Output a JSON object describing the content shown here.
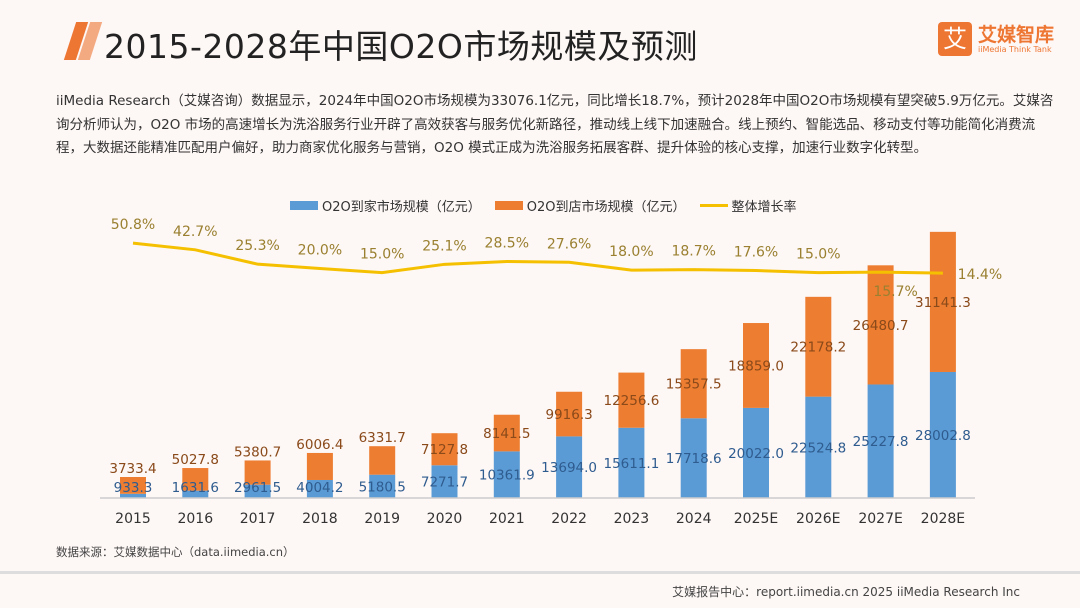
{
  "header": {
    "title": "2015-2028年中国O2O市场规模及预测",
    "logo_text": "艾媒智库",
    "logo_sub": "iiMedia Think Tank",
    "logo_mark": "艾"
  },
  "paragraph": "iiMedia Research（艾媒咨询）数据显示，2024年中国O2O市场规模为33076.1亿元，同比增长18.7%，预计2028年中国O2O市场规模有望突破5.9万亿元。艾媒咨询分析师认为，O2O 市场的高速增长为洗浴服务行业开辟了高效获客与服务优化新路径，推动线上线下加速融合。线上预约、智能选品、移动支付等功能简化消费流程，大数据还能精准匹配用户偏好，助力商家优化服务与营销，O2O 模式正成为洗浴服务拓展客群、提升体验的核心支撑，加速行业数字化转型。",
  "source": "数据来源：艾媒数据中心（data.iimedia.cn）",
  "footer": "艾媒报告中心：report.iimedia.cn   2025 iiMedia Research Inc",
  "chart_data": {
    "type": "bar",
    "stacked": true,
    "categories": [
      "2015",
      "2016",
      "2017",
      "2018",
      "2019",
      "2020",
      "2021",
      "2022",
      "2023",
      "2024",
      "2025E",
      "2026E",
      "2027E",
      "2028E"
    ],
    "series": [
      {
        "name": "O2O到家市场规模（亿元）",
        "type": "bar",
        "color": "#5b9bd5",
        "values": [
          933.3,
          1631.6,
          2961.5,
          4004.2,
          5180.5,
          7271.7,
          10361.9,
          13694.0,
          15611.1,
          17718.6,
          20022.0,
          22524.8,
          25227.8,
          28002.8
        ]
      },
      {
        "name": "O2O到店市场规模（亿元）",
        "type": "bar",
        "color": "#ed7d31",
        "values": [
          3733.4,
          5027.8,
          5380.7,
          6006.4,
          6331.7,
          7127.8,
          8141.5,
          9916.3,
          12256.6,
          15357.5,
          18859.0,
          22178.2,
          26480.7,
          31141.3
        ]
      },
      {
        "name": "整体增长率",
        "type": "line",
        "color": "#f5c000",
        "unit": "%",
        "values": [
          50.8,
          42.7,
          25.3,
          20.0,
          15.0,
          25.1,
          28.5,
          27.6,
          18.0,
          18.7,
          17.6,
          15.0,
          15.7,
          14.4
        ]
      }
    ],
    "ylim": [
      0,
      60000
    ],
    "grid": false,
    "legend": "top"
  }
}
